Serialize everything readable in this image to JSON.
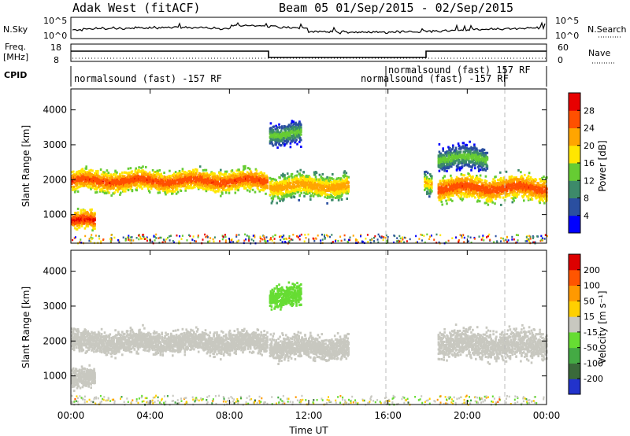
{
  "header": {
    "station": "Adak West (fitACF)",
    "beam_info": "Beam 05  01/Sep/2015 - 02/Sep/2015"
  },
  "strips": {
    "nsky_label": "N.Sky",
    "nsky_ticks": [
      "10^5",
      "10^0"
    ],
    "nsearch_label": "N.Search",
    "nsearch_ticks": [
      "10^5",
      "10^0"
    ],
    "freq_label": "Freq.",
    "freq_unit": "[MHz]",
    "freq_ticks": [
      "18",
      "8"
    ],
    "nave_label": "Nave",
    "nave_ticks": [
      "60",
      "0"
    ],
    "cpid_label": "CPID",
    "cpid_segments": [
      "normalsound (fast) -157 RF",
      "normalsound (fast) -157 RF",
      "normalsound (fast) 157 RF"
    ]
  },
  "colors": {
    "power": [
      "#0000ff",
      "#2a4fa0",
      "#3d8a6a",
      "#66cc33",
      "#ffe600",
      "#ffa500",
      "#ff5000",
      "#e80000"
    ],
    "velocity": [
      "#2233cc",
      "#3a6a3a",
      "#44aa44",
      "#66dd33",
      "#c8c8c0",
      "#ffd000",
      "#ff9900",
      "#ff5500",
      "#dd0000"
    ]
  },
  "chart_data": [
    {
      "type": "heatmap",
      "title": "Power",
      "xlabel": "",
      "ylabel": "Slant Range [km]",
      "xticks": [
        "00:00",
        "04:00",
        "08:00",
        "12:00",
        "16:00",
        "20:00",
        "00:00"
      ],
      "yticks": [
        "1000",
        "2000",
        "3000",
        "4000"
      ],
      "xlim_hours": [
        0,
        24
      ],
      "ylim_km": [
        180,
        4600
      ],
      "colorbar_label": "Power [dB]",
      "colorbar_ticks": [
        "4",
        "8",
        "12",
        "16",
        "20",
        "24",
        "28"
      ],
      "colorbar_range": [
        0,
        30
      ],
      "scatter_bands": [
        {
          "t_start": 0.0,
          "t_end": 1.2,
          "r_center": 800,
          "r_width": 350,
          "value": 28
        },
        {
          "t_start": 0.0,
          "t_end": 9.9,
          "r_center": 1950,
          "r_width": 420,
          "value": 26
        },
        {
          "t_start": 10.0,
          "t_end": 14.0,
          "r_center": 1800,
          "r_width": 500,
          "value": 22
        },
        {
          "t_start": 10.0,
          "t_end": 11.6,
          "r_center": 3300,
          "r_width": 450,
          "value": 14
        },
        {
          "t_start": 17.8,
          "t_end": 18.2,
          "r_center": 1900,
          "r_width": 400,
          "value": 20
        },
        {
          "t_start": 18.5,
          "t_end": 24.0,
          "r_center": 1750,
          "r_width": 500,
          "value": 26
        },
        {
          "t_start": 18.5,
          "t_end": 21.0,
          "r_center": 2600,
          "r_width": 500,
          "value": 14
        }
      ]
    },
    {
      "type": "heatmap",
      "title": "Velocity",
      "xlabel": "Time UT",
      "ylabel": "Slant Range [km]",
      "xticks": [
        "00:00",
        "04:00",
        "08:00",
        "12:00",
        "16:00",
        "20:00",
        "00:00"
      ],
      "yticks": [
        "1000",
        "2000",
        "3000",
        "4000"
      ],
      "xlim_hours": [
        0,
        24
      ],
      "ylim_km": [
        180,
        4600
      ],
      "colorbar_label": "Velocity [m s⁻¹]",
      "colorbar_ticks": [
        "200",
        "100",
        "50",
        "15",
        "-15",
        "-50",
        "-100",
        "-200"
      ],
      "colorbar_range": [
        -250,
        250
      ],
      "scatter_bands": [
        {
          "t_start": 0.0,
          "t_end": 1.2,
          "r_center": 900,
          "r_width": 400,
          "value": 0
        },
        {
          "t_start": 0.0,
          "t_end": 9.9,
          "r_center": 1950,
          "r_width": 450,
          "value": 0
        },
        {
          "t_start": 10.0,
          "t_end": 14.0,
          "r_center": 1800,
          "r_width": 500,
          "value": 0
        },
        {
          "t_start": 10.0,
          "t_end": 11.6,
          "r_center": 3300,
          "r_width": 450,
          "value": -60
        },
        {
          "t_start": 18.5,
          "t_end": 24.0,
          "r_center": 1900,
          "r_width": 600,
          "value": 0
        }
      ]
    }
  ]
}
